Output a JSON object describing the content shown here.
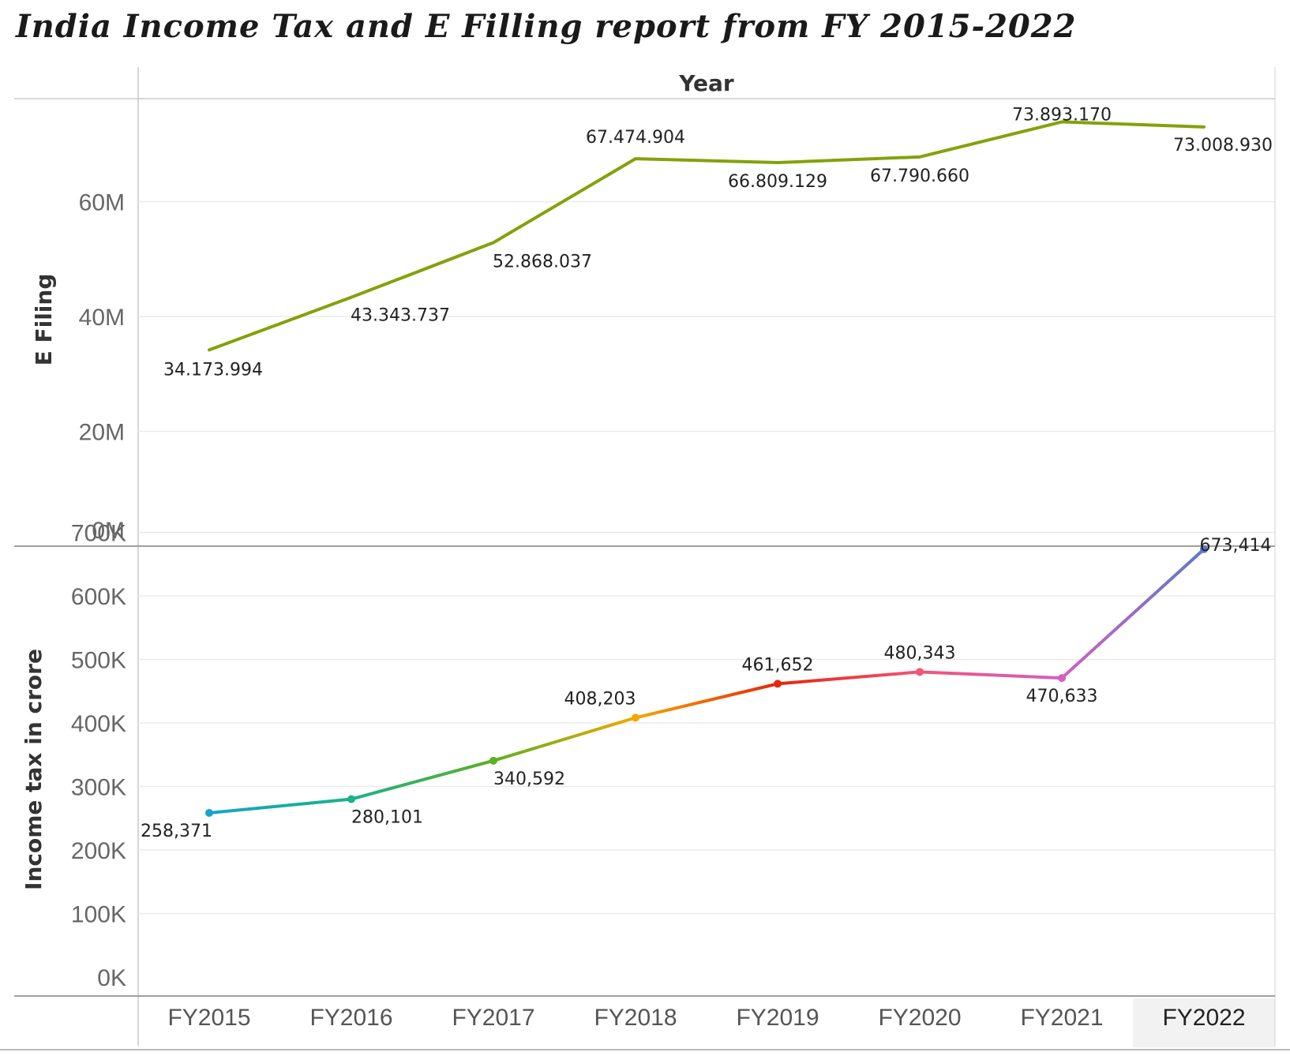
{
  "title": "India Income Tax and E Filling report from FY 2015-2022",
  "chart_data": [
    {
      "type": "line",
      "header": "Year",
      "categories": [
        "FY2015",
        "FY2016",
        "FY2017",
        "FY2018",
        "FY2019",
        "FY2020",
        "FY2021",
        "FY2022"
      ],
      "ylabel": "E Filing",
      "ylim": [
        0,
        75000000
      ],
      "yticks": [
        0,
        20000000,
        40000000,
        60000000
      ],
      "ytick_labels": [
        "0M",
        "20M",
        "40M",
        "60M"
      ],
      "grid": true,
      "color": "#84a10a",
      "values": [
        34173994,
        43343737,
        52868037,
        67474904,
        66809129,
        67790660,
        73893170,
        73008930
      ],
      "value_labels": [
        "34.173.994",
        "43.343.737",
        "52.868.037",
        "67.474.904",
        "66.809.129",
        "67.790.660",
        "73.893.170",
        "73.008.930"
      ]
    },
    {
      "type": "line",
      "categories": [
        "FY2015",
        "FY2016",
        "FY2017",
        "FY2018",
        "FY2019",
        "FY2020",
        "FY2021",
        "FY2022"
      ],
      "ylabel": "Income tax in crore",
      "ylim": [
        0,
        700000
      ],
      "yticks": [
        0,
        100000,
        200000,
        300000,
        400000,
        500000,
        600000,
        700000
      ],
      "ytick_labels": [
        "0K",
        "100K",
        "200K",
        "300K",
        "400K",
        "500K",
        "600K",
        "700K"
      ],
      "grid": true,
      "values": [
        258371,
        280101,
        340592,
        408203,
        461652,
        480343,
        470633,
        673414
      ],
      "value_labels": [
        "258,371",
        "280,101",
        "340,592",
        "408,203",
        "461,652",
        "480,343",
        "470,633",
        "673,414"
      ],
      "point_colors": [
        "#14a5c8",
        "#19b28a",
        "#5db022",
        "#f2a900",
        "#e8250d",
        "#f0567a",
        "#d35fc0",
        "#5b79c9"
      ],
      "highlighted_category": "FY2022"
    }
  ]
}
